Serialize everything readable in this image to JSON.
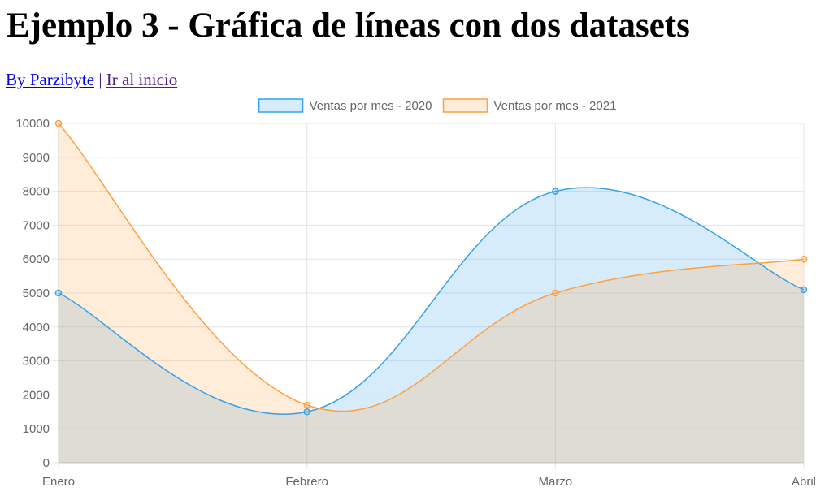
{
  "page": {
    "title": "Ejemplo 3 - Gráfica de líneas con dos datasets",
    "author_link": "By Parzibyte",
    "separator": "|",
    "home_link": "Ir al inicio"
  },
  "chart_data": {
    "type": "line",
    "title": "",
    "xlabel": "",
    "ylabel": "",
    "categories": [
      "Enero",
      "Febrero",
      "Marzo",
      "Abril"
    ],
    "ylim": [
      0,
      10000
    ],
    "y_ticks": [
      0,
      1000,
      2000,
      3000,
      4000,
      5000,
      6000,
      7000,
      8000,
      9000,
      10000
    ],
    "grid": true,
    "legend_position": "top",
    "series": [
      {
        "name": "Ventas por mes - 2020",
        "values": [
          5000,
          1500,
          8000,
          5100
        ],
        "color": "#36a2eb",
        "fill": "rgba(54,162,235,0.2)"
      },
      {
        "name": "Ventas por mes - 2021",
        "values": [
          10000,
          1700,
          5000,
          6000
        ],
        "color": "#ff9f40",
        "fill": "rgba(255,159,64,0.2)"
      }
    ]
  }
}
